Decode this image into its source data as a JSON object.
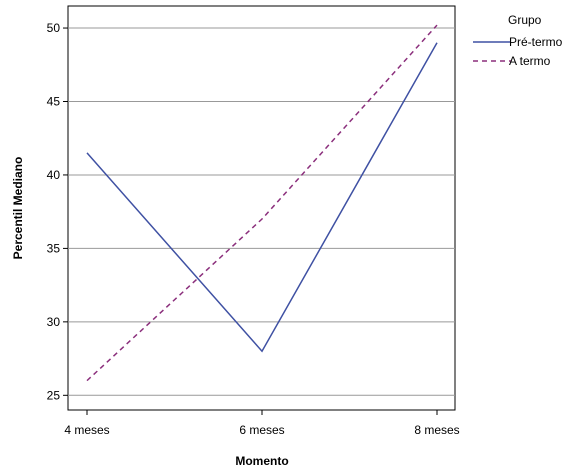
{
  "chart_data": {
    "type": "line",
    "categories": [
      "4 meses",
      "6 meses",
      "8 meses"
    ],
    "series": [
      {
        "name": "Pré-termo",
        "values": [
          41.5,
          28,
          49
        ],
        "color": "#3f51a3",
        "dash": "solid"
      },
      {
        "name": "A termo",
        "values": [
          26,
          37,
          50.2
        ],
        "color": "#8b2f7c",
        "dash": "dashed"
      }
    ],
    "xlabel": "Momento",
    "ylabel": "Percentil Mediano",
    "ylim": [
      24,
      51.5
    ],
    "yticks": [
      25,
      30,
      35,
      40,
      45,
      50
    ],
    "grid": true,
    "legend": {
      "title": "Grupo",
      "position": "top-right"
    }
  }
}
